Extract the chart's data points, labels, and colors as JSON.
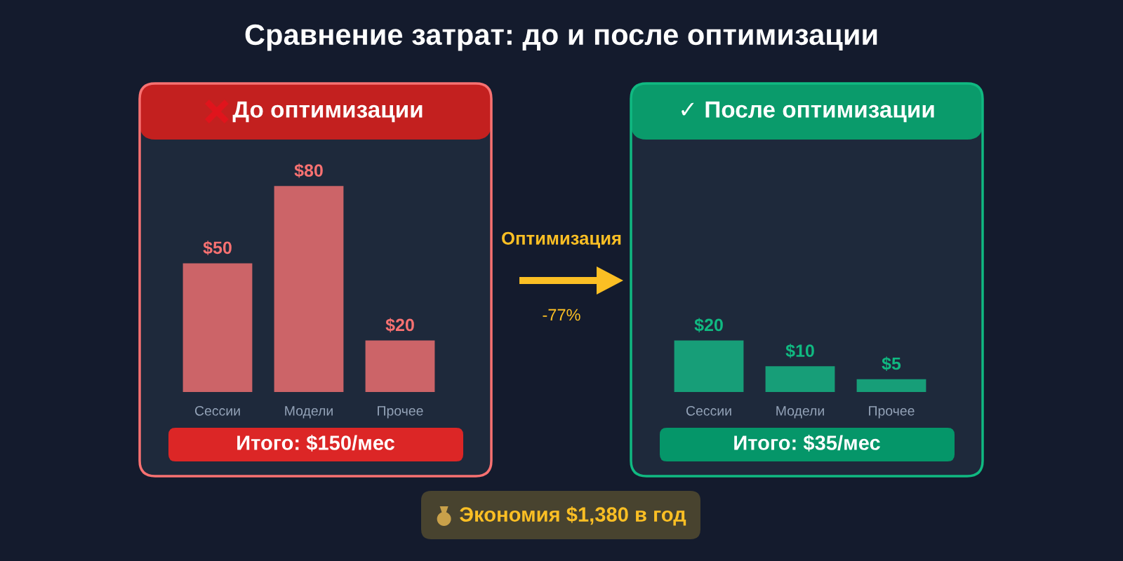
{
  "chart_data": [
    {
      "type": "other",
      "title": "Сравнение затрат: до и после оптимизации",
      "annotations": [
        "Оптимизация",
        "-77%",
        "Экономия $1,380 в год"
      ]
    },
    {
      "type": "bar",
      "title": "До оптимизации",
      "categories": [
        "Сессии",
        "Модели",
        "Прочее"
      ],
      "values": [
        50,
        80,
        20
      ],
      "color": "#cc6468",
      "value_labels": [
        "$50",
        "$80",
        "$20"
      ],
      "tick_labels": "x",
      "annotations": [
        "Итого: $150/мес"
      ]
    },
    {
      "type": "bar",
      "title": "✓ После оптимизации",
      "categories": [
        "Сессии",
        "Модели",
        "Прочее"
      ],
      "values": [
        20,
        10,
        5
      ],
      "color": "#179e78",
      "value_labels": [
        "$20",
        "$10",
        "$5"
      ],
      "tick_labels": "x",
      "annotations": [
        "Итого: $35/мес"
      ]
    }
  ]
}
